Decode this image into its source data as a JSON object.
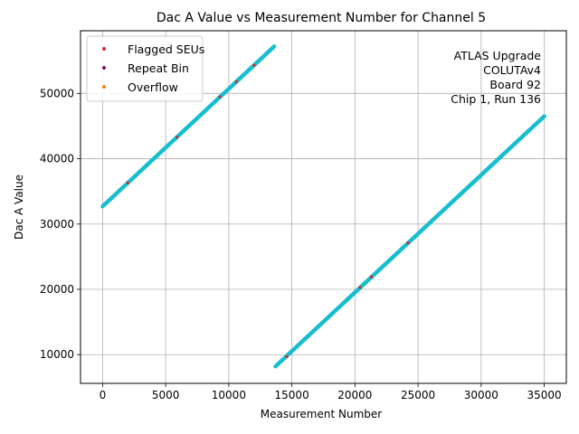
{
  "chart_data": {
    "type": "scatter",
    "title": "Dac A Value vs Measurement Number for Channel 5",
    "xlabel": "Measurement Number",
    "ylabel": "Dac A Value",
    "xlim": [
      -1750,
      36750
    ],
    "ylim": [
      5600,
      59600
    ],
    "xticks": [
      0,
      5000,
      10000,
      15000,
      20000,
      25000,
      30000,
      35000
    ],
    "yticks": [
      10000,
      20000,
      30000,
      40000,
      50000
    ],
    "grid": true,
    "legend_position": "top-left",
    "annotation": [
      "ATLAS Upgrade",
      "COLUTAv4",
      "Board 92",
      "Chip 1, Run 136"
    ],
    "series": [
      {
        "name": "",
        "color": "#17becf",
        "segments": [
          {
            "x": [
              0,
              13600
            ],
            "y": [
              32700,
              57200
            ]
          },
          {
            "x": [
              13700,
              35000
            ],
            "y": [
              8200,
              46500
            ]
          }
        ]
      },
      {
        "name": "Flagged SEUs",
        "color": "#d62728",
        "x": [
          2000,
          5900,
          9300,
          10600,
          12000,
          14600,
          20400,
          21300,
          24200
        ],
        "y": [
          36300,
          43300,
          49500,
          51800,
          54300,
          9700,
          20300,
          21900,
          27100
        ]
      },
      {
        "name": "Repeat Bin",
        "color": "#7f0f5f",
        "x": [],
        "y": []
      },
      {
        "name": "Overflow",
        "color": "#ff7f0e",
        "x": [],
        "y": []
      }
    ]
  }
}
